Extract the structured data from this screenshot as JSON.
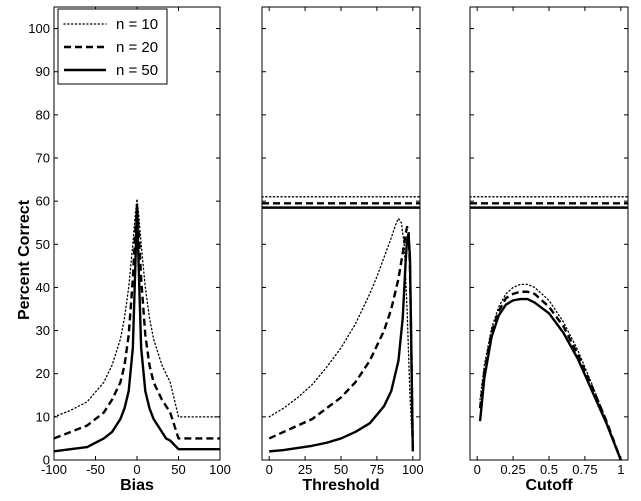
{
  "chart_data": {
    "type": "line",
    "ylabel": "Percent Correct",
    "ylim": [
      0,
      105
    ],
    "yticks": [
      0,
      10,
      20,
      30,
      40,
      50,
      60,
      70,
      80,
      90,
      100
    ],
    "legend": {
      "placement": "top-left of first panel",
      "entries": [
        {
          "label": "n = 10",
          "style": "dotted"
        },
        {
          "label": "n = 20",
          "style": "dashed"
        },
        {
          "label": "n = 50",
          "style": "solid"
        }
      ]
    },
    "panels": [
      {
        "xlabel": "Bias",
        "xlim": [
          -100,
          100
        ],
        "xticks": [
          "-100",
          "-50",
          "0",
          "50",
          "100"
        ],
        "xtick_values": [
          -100,
          -50,
          0,
          50,
          100
        ],
        "series": [
          {
            "name": "n = 10",
            "style": "dotted",
            "x": [
              -100,
              -80,
              -60,
              -40,
              -30,
              -20,
              -15,
              -10,
              -5,
              -2,
              0,
              2,
              5,
              10,
              15,
              20,
              30,
              40,
              50,
              60,
              80,
              100
            ],
            "y": [
              10,
              11.5,
              13.5,
              18,
              22,
              28,
              33,
              40,
              50,
              57,
              60.5,
              57,
              50,
              40,
              33,
              28,
              22,
              18,
              10,
              10,
              10,
              10
            ]
          },
          {
            "name": "n = 20",
            "style": "dashed",
            "x": [
              -100,
              -80,
              -60,
              -40,
              -30,
              -20,
              -15,
              -10,
              -5,
              -2,
              0,
              2,
              5,
              10,
              15,
              20,
              30,
              40,
              50,
              60,
              80,
              100
            ],
            "y": [
              5,
              6.5,
              8,
              11,
              14,
              18,
              22,
              29,
              42,
              53,
              58,
              53,
              42,
              29,
              22,
              18,
              14,
              11,
              5,
              5,
              5,
              5
            ]
          },
          {
            "name": "n = 50",
            "style": "solid",
            "x": [
              -100,
              -80,
              -60,
              -40,
              -30,
              -20,
              -15,
              -10,
              -5,
              -2,
              0,
              2,
              5,
              10,
              15,
              20,
              30,
              35,
              40,
              50,
              60,
              80,
              100
            ],
            "y": [
              2,
              2.5,
              3,
              5,
              6.5,
              9.5,
              12,
              16,
              26,
              45,
              59,
              45,
              26,
              16,
              12,
              9.5,
              6.5,
              5,
              4.5,
              2.5,
              2.5,
              2.5,
              2.5
            ]
          }
        ]
      },
      {
        "xlabel": "Threshold",
        "xlim": [
          -5,
          105
        ],
        "xticks": [
          "0",
          "25",
          "50",
          "75",
          "100"
        ],
        "xtick_values": [
          0,
          25,
          50,
          75,
          100
        ],
        "reference_lines": [
          {
            "name": "n = 10",
            "style": "dotted",
            "y": 61
          },
          {
            "name": "n = 20",
            "style": "dashed",
            "y": 59.5
          },
          {
            "name": "n = 50",
            "style": "solid",
            "y": 58.5
          }
        ],
        "series": [
          {
            "name": "n = 10",
            "style": "dotted",
            "x": [
              0,
              10,
              20,
              30,
              40,
              50,
              60,
              70,
              75,
              80,
              85,
              88,
              90,
              92,
              94,
              96,
              98,
              100
            ],
            "y": [
              10,
              12,
              14.5,
              17.5,
              21.5,
              26,
              31.5,
              38.5,
              42.5,
              47,
              51.5,
              54.5,
              56,
              55,
              50,
              35,
              15,
              2
            ]
          },
          {
            "name": "n = 20",
            "style": "dashed",
            "x": [
              0,
              10,
              20,
              30,
              40,
              50,
              60,
              70,
              80,
              85,
              90,
              93,
              95,
              96,
              97,
              98,
              99,
              100
            ],
            "y": [
              5,
              6.5,
              8,
              9.5,
              12,
              14.5,
              18,
              23,
              30,
              35,
              42,
              48,
              52.5,
              54,
              53,
              45,
              25,
              2
            ]
          },
          {
            "name": "n = 50",
            "style": "solid",
            "x": [
              0,
              10,
              20,
              30,
              40,
              50,
              60,
              70,
              80,
              85,
              90,
              93,
              95,
              96,
              97,
              98,
              99,
              100
            ],
            "y": [
              2,
              2.3,
              2.8,
              3.3,
              4,
              5,
              6.5,
              8.5,
              12.5,
              16,
              23,
              33,
              46,
              51,
              52.5,
              47,
              25,
              2
            ]
          }
        ]
      },
      {
        "xlabel": "Cutoff",
        "xlim": [
          -0.05,
          1.05
        ],
        "xticks": [
          "0",
          "0.25",
          "0.5",
          "0.75",
          "1"
        ],
        "xtick_values": [
          0,
          0.25,
          0.5,
          0.75,
          1
        ],
        "reference_lines": [
          {
            "name": "n = 10",
            "style": "dotted",
            "y": 61
          },
          {
            "name": "n = 20",
            "style": "dashed",
            "y": 59.5
          },
          {
            "name": "n = 50",
            "style": "solid",
            "y": 58.5
          }
        ],
        "series": [
          {
            "name": "n = 10",
            "style": "dotted",
            "x": [
              0.02,
              0.05,
              0.1,
              0.15,
              0.2,
              0.25,
              0.3,
              0.35,
              0.4,
              0.5,
              0.6,
              0.7,
              0.8,
              0.9,
              1.0
            ],
            "y": [
              14,
              22,
              30.5,
              35.5,
              38.5,
              40,
              40.7,
              40.7,
              40,
              37,
              32,
              25.5,
              17.5,
              9,
              0
            ]
          },
          {
            "name": "n = 20",
            "style": "dashed",
            "x": [
              0.02,
              0.05,
              0.1,
              0.15,
              0.2,
              0.25,
              0.3,
              0.35,
              0.4,
              0.5,
              0.6,
              0.7,
              0.8,
              0.9,
              1.0
            ],
            "y": [
              12,
              20.5,
              29.5,
              34.5,
              37.5,
              38.5,
              39,
              39,
              38.5,
              35.5,
              31,
              24.5,
              17,
              9,
              0
            ]
          },
          {
            "name": "n = 50",
            "style": "solid",
            "x": [
              0.02,
              0.05,
              0.1,
              0.15,
              0.2,
              0.25,
              0.3,
              0.35,
              0.4,
              0.5,
              0.6,
              0.7,
              0.8,
              0.9,
              1.0
            ],
            "y": [
              9,
              19,
              28.5,
              33.5,
              36,
              37,
              37.3,
              37.3,
              36.5,
              34,
              29.5,
              23.5,
              16,
              8.5,
              0
            ]
          }
        ]
      }
    ]
  }
}
